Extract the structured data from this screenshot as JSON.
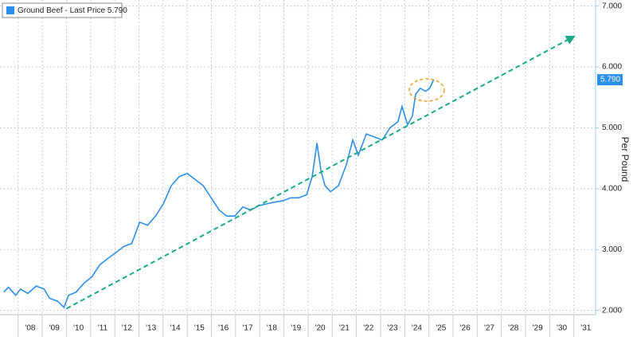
{
  "chart_data": {
    "type": "line",
    "y_axis_label": "Per Pound",
    "x": [
      2007.4,
      2007.6,
      2007.9,
      2008.1,
      2008.4,
      2008.75,
      2009.08,
      2009.3,
      2009.64,
      2009.9,
      2010.09,
      2010.4,
      2010.73,
      2011.05,
      2011.38,
      2011.7,
      2012.04,
      2012.37,
      2012.7,
      2013.03,
      2013.36,
      2013.69,
      2014.01,
      2014.34,
      2014.67,
      2015.0,
      2015.33,
      2015.66,
      2015.99,
      2016.32,
      2016.64,
      2016.97,
      2017.3,
      2017.63,
      2017.96,
      2018.29,
      2018.62,
      2018.95,
      2019.28,
      2019.61,
      2019.94,
      2020.17,
      2020.37,
      2020.53,
      2020.7,
      2020.93,
      2021.26,
      2021.59,
      2021.85,
      2022.08,
      2022.41,
      2022.74,
      2023.07,
      2023.39,
      2023.72,
      2023.89,
      2024.12,
      2024.32,
      2024.45,
      2024.64,
      2024.87,
      2025.03,
      2025.2
    ],
    "series": [
      {
        "name": "Ground Beef - Last Price 5.790",
        "color": "#2a8fe8",
        "values": [
          2.3,
          2.38,
          2.25,
          2.35,
          2.28,
          2.4,
          2.35,
          2.2,
          2.15,
          2.05,
          2.25,
          2.3,
          2.45,
          2.55,
          2.75,
          2.85,
          2.95,
          3.05,
          3.1,
          3.45,
          3.4,
          3.55,
          3.75,
          4.05,
          4.2,
          4.25,
          4.15,
          4.05,
          3.85,
          3.65,
          3.55,
          3.55,
          3.7,
          3.65,
          3.72,
          3.75,
          3.78,
          3.8,
          3.85,
          3.85,
          3.9,
          4.2,
          4.75,
          4.3,
          4.05,
          3.95,
          4.05,
          4.4,
          4.8,
          4.55,
          4.9,
          4.85,
          4.8,
          5.0,
          5.1,
          5.35,
          5.05,
          5.2,
          5.55,
          5.65,
          5.6,
          5.65,
          5.79
        ]
      }
    ],
    "last_price_label": "5.790",
    "trend_line": {
      "color": "#1aaa8a",
      "x": [
        2010.0,
        2031.0
      ],
      "values": [
        2.03,
        6.5
      ]
    },
    "xlim": [
      2007.25,
      2031.9
    ],
    "ylim": [
      1.93,
      7.1
    ],
    "xticks": [
      {
        "value": 2008,
        "label": "'08"
      },
      {
        "value": 2009,
        "label": "'09"
      },
      {
        "value": 2010,
        "label": "'10"
      },
      {
        "value": 2011,
        "label": "'11"
      },
      {
        "value": 2012,
        "label": "'12"
      },
      {
        "value": 2013,
        "label": "'13"
      },
      {
        "value": 2014,
        "label": "'14"
      },
      {
        "value": 2015,
        "label": "'15"
      },
      {
        "value": 2016,
        "label": "'16"
      },
      {
        "value": 2017,
        "label": "'17"
      },
      {
        "value": 2018,
        "label": "'18"
      },
      {
        "value": 2019,
        "label": "'19"
      },
      {
        "value": 2020,
        "label": "'20"
      },
      {
        "value": 2021,
        "label": "'21"
      },
      {
        "value": 2022,
        "label": "'22"
      },
      {
        "value": 2023,
        "label": "'23"
      },
      {
        "value": 2024,
        "label": "'24"
      },
      {
        "value": 2025,
        "label": "'25"
      },
      {
        "value": 2026,
        "label": "'26"
      },
      {
        "value": 2027,
        "label": "'27"
      },
      {
        "value": 2028,
        "label": "'28"
      },
      {
        "value": 2029,
        "label": "'29"
      },
      {
        "value": 2030,
        "label": "'30"
      },
      {
        "value": 2031,
        "label": "'31"
      }
    ],
    "yticks": [
      {
        "value": 2,
        "label": "2.000"
      },
      {
        "value": 3,
        "label": "3.000"
      },
      {
        "value": 4,
        "label": "4.000"
      },
      {
        "value": 5,
        "label": "5.000"
      },
      {
        "value": 6,
        "label": "6.000"
      },
      {
        "value": 7,
        "label": "7.000"
      }
    ],
    "grid": true
  }
}
